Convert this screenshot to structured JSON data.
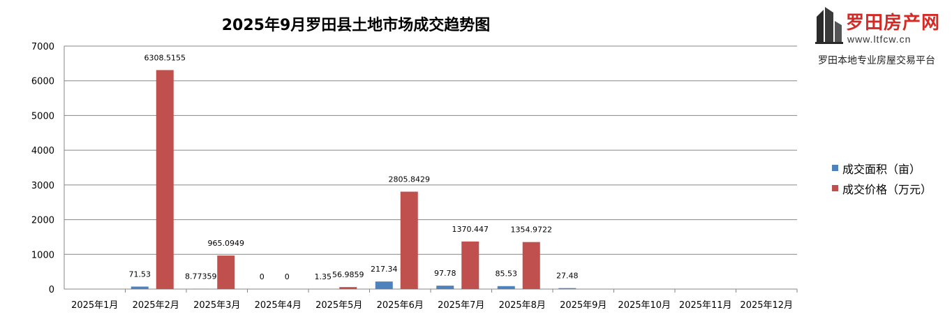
{
  "chart_data": {
    "type": "bar",
    "title": "2025年9月罗田县土地市场成交趋势图",
    "categories": [
      "2025年1月",
      "2025年2月",
      "2025年3月",
      "2025年4月",
      "2025年5月",
      "2025年6月",
      "2025年7月",
      "2025年8月",
      "2025年9月",
      "2025年10月",
      "2025年11月",
      "2025年12月"
    ],
    "series": [
      {
        "name": "成交面积（亩）",
        "color": "#4f81bd",
        "values": [
          null,
          71.53,
          8.77359,
          0,
          1.35,
          217.34,
          97.78,
          85.53,
          27.48,
          null,
          null,
          null
        ],
        "labels": [
          "",
          "71.53",
          "8.77359",
          "0",
          "1.35",
          "217.34",
          "97.78",
          "85.53",
          "27.48",
          "",
          "",
          ""
        ]
      },
      {
        "name": "成交价格（万元）",
        "color": "#c0504d",
        "values": [
          null,
          6308.5155,
          965.0949,
          0,
          56.9859,
          2805.8429,
          1370.447,
          1354.9722,
          null,
          null,
          null,
          null
        ],
        "labels": [
          "",
          "6308.5155",
          "965.0949",
          "0",
          "56.9859",
          "2805.8429",
          "1370.447",
          "1354.9722",
          "",
          "",
          "",
          ""
        ]
      }
    ],
    "ylim": [
      0,
      7000
    ],
    "yticks": [
      0,
      1000,
      2000,
      3000,
      4000,
      5000,
      6000,
      7000
    ],
    "grid": true,
    "legend_position": "right"
  },
  "logo": {
    "name": "罗田房产网",
    "url": "www.ltfcw.cn",
    "tagline": "罗田本地专业房屋交易平台",
    "brand_color": "#d42a26"
  }
}
